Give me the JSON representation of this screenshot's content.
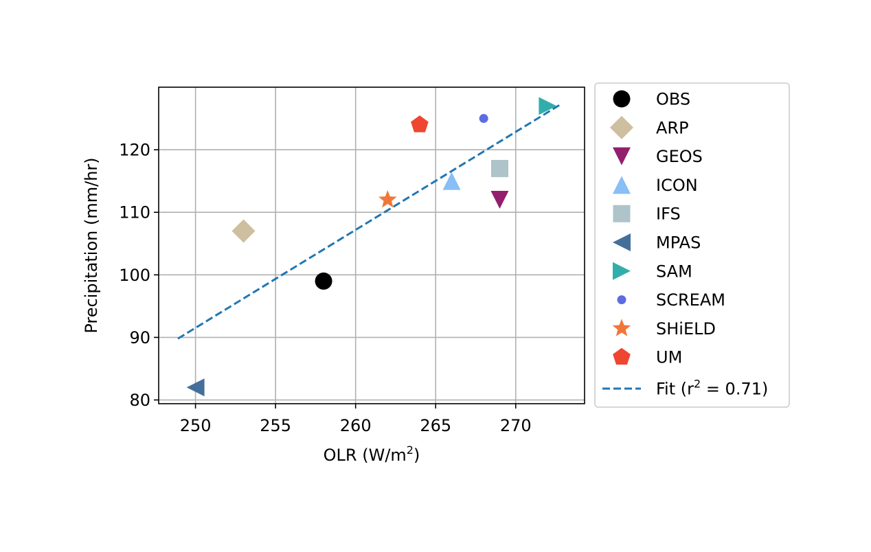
{
  "chart_data": {
    "type": "scatter",
    "xlabel": "OLR (W/m²)",
    "ylabel": "Precipitation (mm/hr)",
    "xlim": [
      247.7,
      274.3
    ],
    "ylim": [
      79.4,
      130.0
    ],
    "xticks": [
      250,
      255,
      260,
      265,
      270
    ],
    "yticks": [
      80,
      90,
      100,
      110,
      120
    ],
    "grid": true,
    "legend_placement": "outside-right",
    "series": [
      {
        "name": "OBS",
        "marker": "circle",
        "color": "#000000",
        "points": [
          {
            "x": 258,
            "y": 99
          }
        ]
      },
      {
        "name": "ARP",
        "marker": "diamond",
        "color": "#CDBF9F",
        "points": [
          {
            "x": 253,
            "y": 107
          }
        ]
      },
      {
        "name": "GEOS",
        "marker": "triangle-down",
        "color": "#931E6E",
        "points": [
          {
            "x": 269,
            "y": 112
          }
        ]
      },
      {
        "name": "ICON",
        "marker": "triangle-up",
        "color": "#89BEF6",
        "points": [
          {
            "x": 266,
            "y": 115
          }
        ]
      },
      {
        "name": "IFS",
        "marker": "square",
        "color": "#AEC3CA",
        "points": [
          {
            "x": 269,
            "y": 117
          }
        ]
      },
      {
        "name": "MPAS",
        "marker": "triangle-left",
        "color": "#456F9B",
        "points": [
          {
            "x": 250,
            "y": 82
          }
        ]
      },
      {
        "name": "SAM",
        "marker": "triangle-right",
        "color": "#31AEAC",
        "points": [
          {
            "x": 272,
            "y": 127
          }
        ]
      },
      {
        "name": "SCREAM",
        "marker": "small-circle",
        "color": "#5D6DE0",
        "points": [
          {
            "x": 268,
            "y": 125
          }
        ]
      },
      {
        "name": "SHiELD",
        "marker": "star",
        "color": "#F0773A",
        "points": [
          {
            "x": 262,
            "y": 112
          }
        ]
      },
      {
        "name": "UM",
        "marker": "pentagon",
        "color": "#EE4630",
        "points": [
          {
            "x": 264,
            "y": 124
          }
        ]
      }
    ],
    "fit": {
      "name": "Fit (r",
      "sup": "2",
      "suffix": " = 0.71)",
      "color": "#1F77B4",
      "style": "dashed",
      "x": [
        248.9,
        272.9
      ],
      "y": [
        89.8,
        127.4
      ]
    }
  }
}
